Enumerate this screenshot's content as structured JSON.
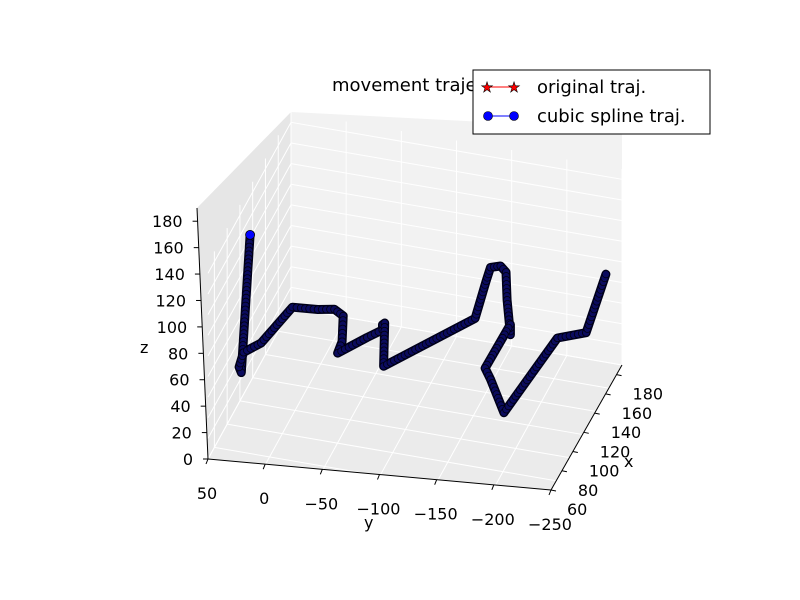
{
  "chart_data": {
    "type": "line",
    "projection": "3d",
    "title": "movement trajectory",
    "xlabel": "x",
    "ylabel": "y",
    "zlabel": "z",
    "x_ticks": [
      "60",
      "80",
      "100",
      "120",
      "140",
      "160",
      "180"
    ],
    "y_ticks": [
      "50",
      "0",
      "−50",
      "−100",
      "−150",
      "−200",
      "−250"
    ],
    "z_ticks": [
      "0",
      "20",
      "40",
      "60",
      "80",
      "100",
      "120",
      "140",
      "160",
      "180"
    ],
    "xlim": [
      60,
      190
    ],
    "ylim": [
      -250,
      50
    ],
    "zlim": [
      0,
      190
    ],
    "grid": true,
    "legend_position": "top-right",
    "series": [
      {
        "name": "original traj.",
        "color": "#ff0000",
        "marker": "star"
      },
      {
        "name": "cubic spline traj.",
        "color": "#0000ff",
        "marker": "circle"
      }
    ],
    "x": [
      150,
      150,
      150,
      150,
      120,
      120,
      120,
      120,
      120,
      120,
      150,
      150,
      150,
      150,
      150,
      100,
      100,
      100,
      100,
      100,
      100,
      100,
      100,
      150,
      150,
      150,
      80,
      80,
      80
    ],
    "y": [
      43,
      45,
      41,
      25,
      14,
      -9,
      -24,
      -32,
      -31,
      -27,
      -71,
      -85,
      -85,
      -87,
      -86,
      -140,
      -150,
      -154,
      -163,
      -168,
      -169,
      -172,
      -172,
      -178,
      -183,
      -195,
      -203,
      -229,
      -247
    ],
    "z": [
      40,
      45,
      60,
      72,
      75,
      77,
      80,
      75,
      50,
      38,
      95,
      105,
      110,
      112,
      70,
      70,
      108,
      122,
      125,
      120,
      93,
      60,
      70,
      85,
      75,
      45,
      40,
      50,
      110
    ],
    "start_point": {
      "x": 150,
      "y": 35,
      "z": 175
    }
  }
}
